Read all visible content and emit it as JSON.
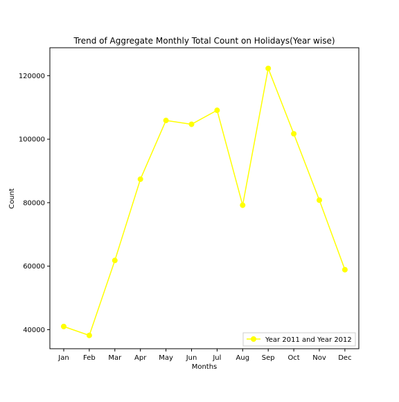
{
  "chart_data": {
    "type": "line",
    "title": "Trend of Aggregate Monthly Total Count on Holidays(Year wise)",
    "xlabel": "Months",
    "ylabel": "Count",
    "categories": [
      "Jan",
      "Feb",
      "Mar",
      "Apr",
      "May",
      "Jun",
      "Jul",
      "Aug",
      "Sep",
      "Oct",
      "Nov",
      "Dec"
    ],
    "series": [
      {
        "name": "Year 2011 and Year 2012",
        "values": [
          41000,
          38200,
          61800,
          87400,
          105900,
          104700,
          109100,
          79200,
          122300,
          101700,
          80800,
          58900
        ],
        "color": "#ffff00",
        "marker": "circle"
      }
    ],
    "yticks": [
      40000,
      60000,
      80000,
      100000,
      120000
    ],
    "ylim": [
      34000,
      128800
    ],
    "grid": false,
    "legend_position": "lower right"
  }
}
